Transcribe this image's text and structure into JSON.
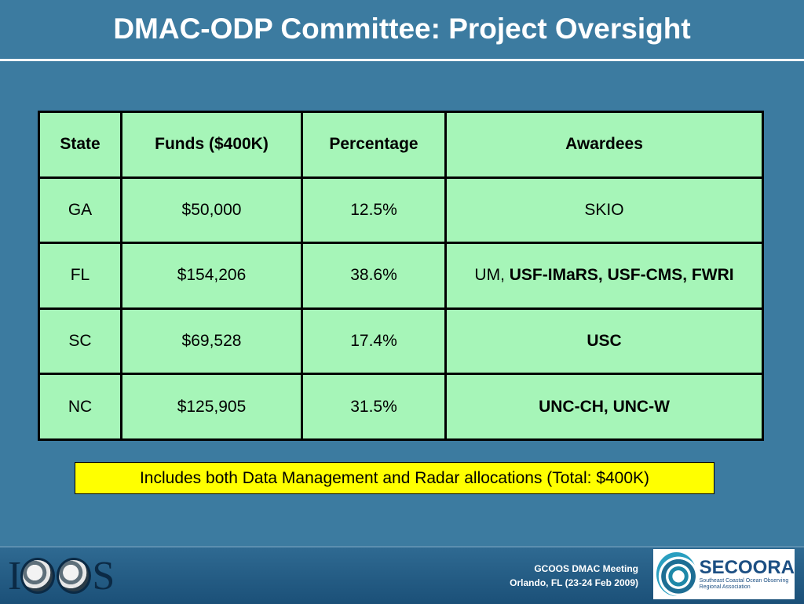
{
  "title": "DMAC-ODP Committee: Project Oversight",
  "table": {
    "headers": [
      "State",
      "Funds ($400K)",
      "Percentage",
      "Awardees"
    ],
    "rows": [
      {
        "state": "GA",
        "funds": "$50,000",
        "percentage": "12.5%",
        "awardees_plain": "SKIO",
        "awardees_bold": ""
      },
      {
        "state": "FL",
        "funds": "$154,206",
        "percentage": "38.6%",
        "awardees_plain": "UM, ",
        "awardees_bold": "USF-IMaRS, USF-CMS, FWRI"
      },
      {
        "state": "SC",
        "funds": "$69,528",
        "percentage": "17.4%",
        "awardees_plain": "",
        "awardees_bold": "USC"
      },
      {
        "state": "NC",
        "funds": "$125,905",
        "percentage": "31.5%",
        "awardees_plain": "",
        "awardees_bold": "UNC-CH, UNC-W"
      }
    ]
  },
  "note": "Includes both Data Management and Radar allocations (Total: $400K)",
  "footer": {
    "logo_left": "IOOS",
    "meeting_line1": "GCOOS DMAC Meeting",
    "meeting_line2": "Orlando, FL (23-24 Feb 2009)",
    "logo_right_name": "SECOORA",
    "logo_right_sub1": "Southeast Coastal Ocean Observing",
    "logo_right_sub2": "Regional Association"
  },
  "colors": {
    "background": "#3c7ba0",
    "table_fill": "#a6f5b8",
    "note_fill": "#ffff00"
  }
}
